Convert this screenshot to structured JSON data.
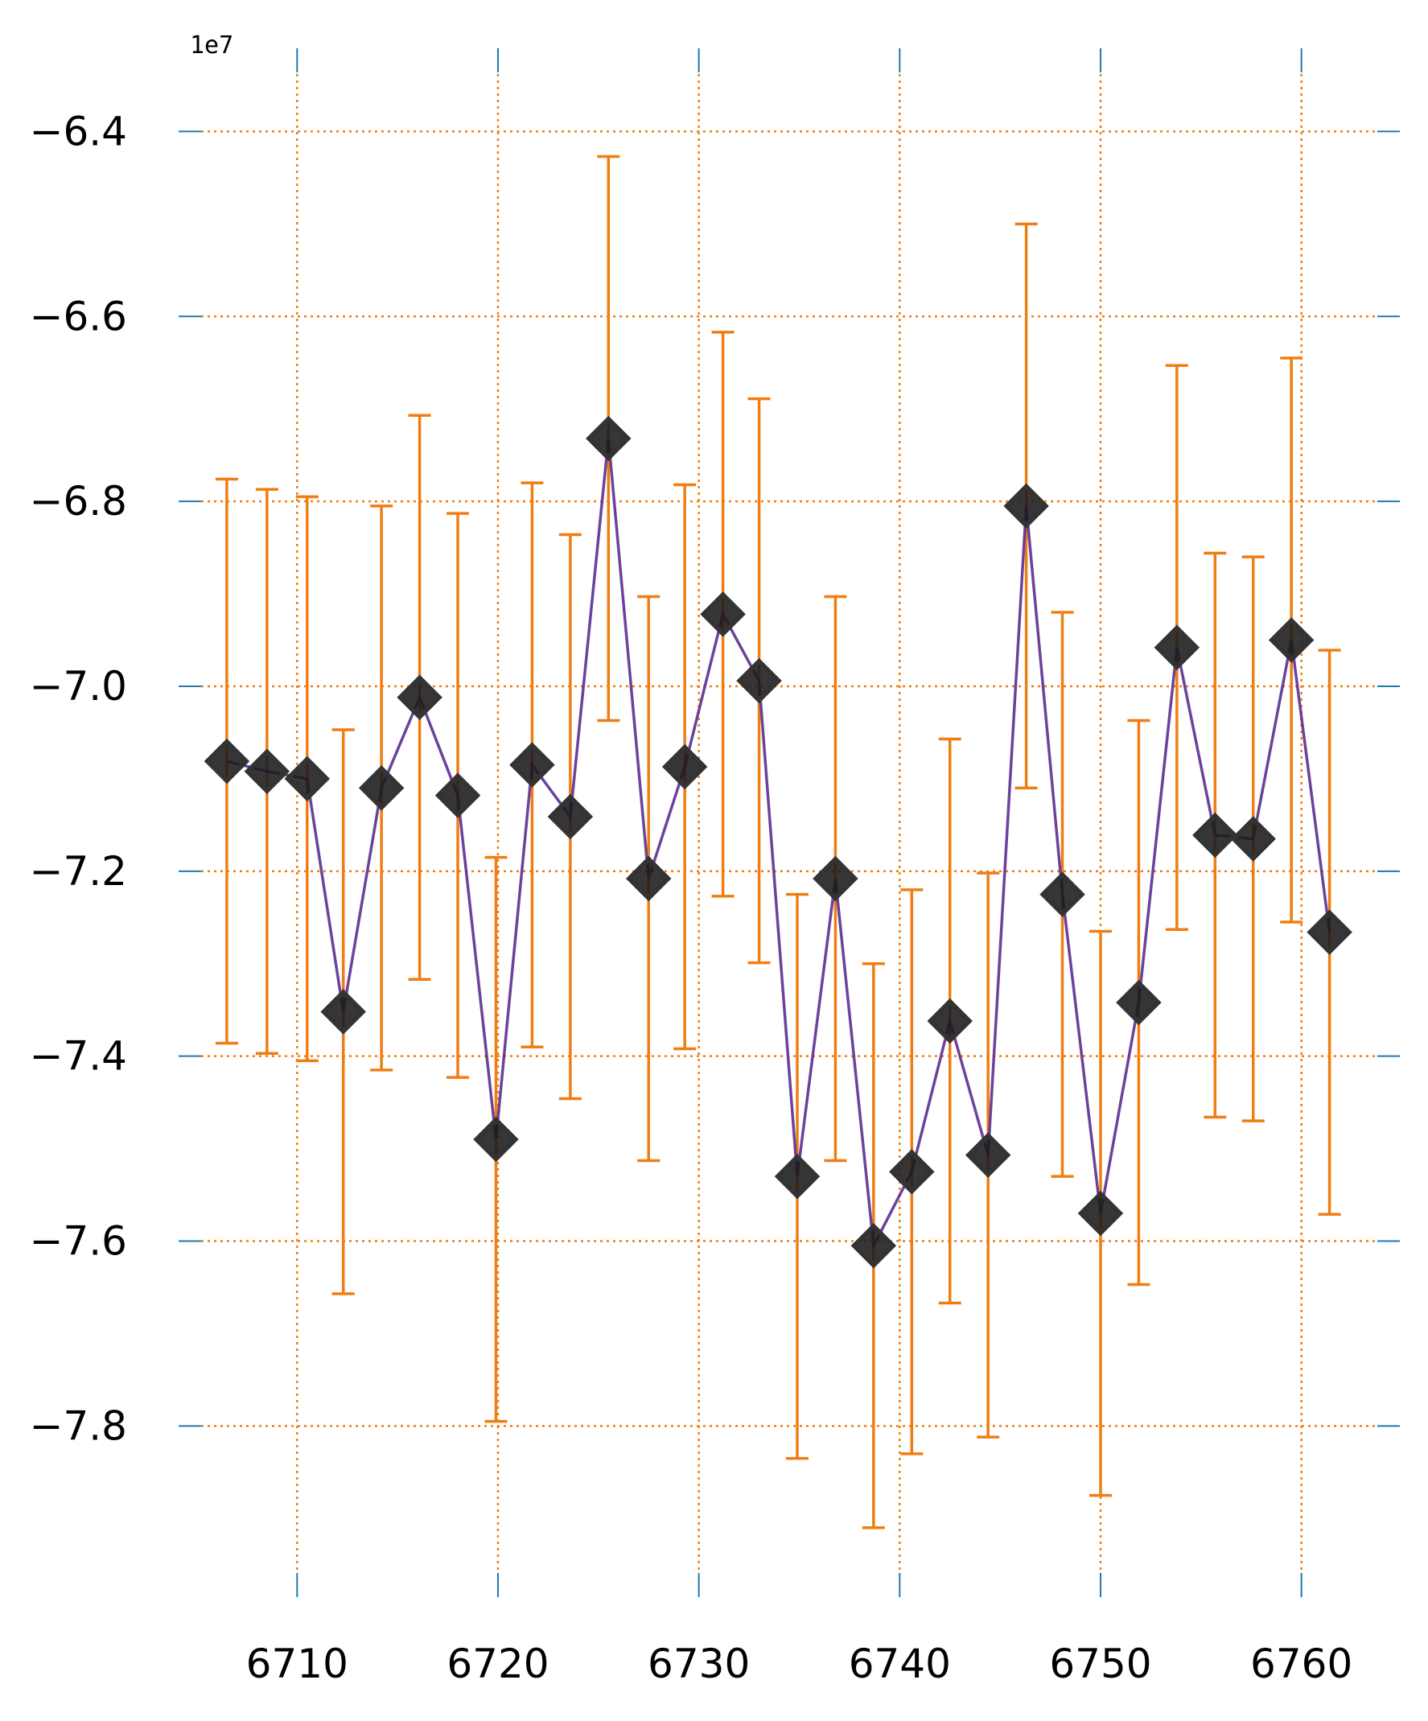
{
  "chart_data": {
    "type": "line",
    "title": "",
    "xlabel": "",
    "ylabel": "",
    "y_offset_label": "1e7",
    "xlim": [
      6704.1,
      6764.9
    ],
    "ylim": [
      -7.985,
      -6.31
    ],
    "x_ticks": [
      {
        "value": 6710,
        "label": "6710"
      },
      {
        "value": 6720,
        "label": "6720"
      },
      {
        "value": 6730,
        "label": "6730"
      },
      {
        "value": 6740,
        "label": "6740"
      },
      {
        "value": 6750,
        "label": "6750"
      },
      {
        "value": 6760,
        "label": "6760"
      }
    ],
    "y_ticks": [
      {
        "value": -6.4,
        "label": "−6.4"
      },
      {
        "value": -6.6,
        "label": "−6.6"
      },
      {
        "value": -6.8,
        "label": "−6.8"
      },
      {
        "value": -7.0,
        "label": "−7.0"
      },
      {
        "value": -7.2,
        "label": "−7.2"
      },
      {
        "value": -7.4,
        "label": "−7.4"
      },
      {
        "value": -7.6,
        "label": "−7.6"
      },
      {
        "value": -7.8,
        "label": "−7.8"
      }
    ],
    "grid": true,
    "colors": {
      "line": "#5b2e91",
      "marker_fill": "#1a1a1a",
      "marker_edge": "#333333",
      "errorbar": "#f07d12",
      "grid": "#f07d12",
      "ticks": "#1f77b4"
    },
    "series": [
      {
        "x": [
          6706.5,
          6708.5,
          6710.5,
          6712.3,
          6714.2,
          6716.1,
          6718.0,
          6719.9,
          6721.7,
          6723.6,
          6725.5,
          6727.5,
          6729.3,
          6731.2,
          6733.0,
          6734.9,
          6736.8,
          6738.7,
          6740.6,
          6742.5,
          6744.4,
          6746.3,
          6748.1,
          6750.0,
          6751.9,
          6753.8,
          6755.7,
          6757.6,
          6759.5,
          6761.4
        ],
        "y": [
          -7.081,
          -7.092,
          -7.1,
          -7.352,
          -7.11,
          -7.012,
          -7.118,
          -7.49,
          -7.085,
          -7.141,
          -6.732,
          -7.208,
          -7.087,
          -6.922,
          -6.994,
          -7.53,
          -7.208,
          -7.605,
          -7.525,
          -7.362,
          -7.507,
          -6.805,
          -7.225,
          -7.57,
          -7.342,
          -6.958,
          -7.161,
          -7.165,
          -6.95,
          -7.266
        ],
        "yerr": [
          0.305,
          0.305,
          0.305,
          0.305,
          0.305,
          0.305,
          0.305,
          0.305,
          0.305,
          0.305,
          0.305,
          0.305,
          0.305,
          0.305,
          0.305,
          0.305,
          0.305,
          0.305,
          0.305,
          0.305,
          0.305,
          0.305,
          0.305,
          0.305,
          0.305,
          0.305,
          0.305,
          0.305,
          0.305,
          0.305
        ]
      }
    ]
  }
}
